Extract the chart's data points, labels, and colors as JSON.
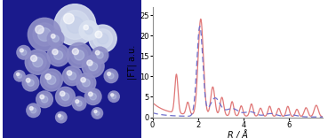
{
  "title": "",
  "xlabel": "R / Å",
  "ylabel": "|FT| a.u.",
  "xlim": [
    0,
    7.5
  ],
  "ylim": [
    0,
    27
  ],
  "yticks": [
    0,
    5,
    10,
    15,
    20,
    25
  ],
  "xticks": [
    0,
    2,
    4,
    6
  ],
  "line_red_color": "#e07878",
  "line_blue_color": "#7070cc",
  "plot_bg_color": "#ffffff",
  "fig_background": "#ffffff",
  "sem_bg_color": "#1a1a8c",
  "sphere_color_light": "#c8d0f0",
  "sphere_color_mid": "#8090d0"
}
